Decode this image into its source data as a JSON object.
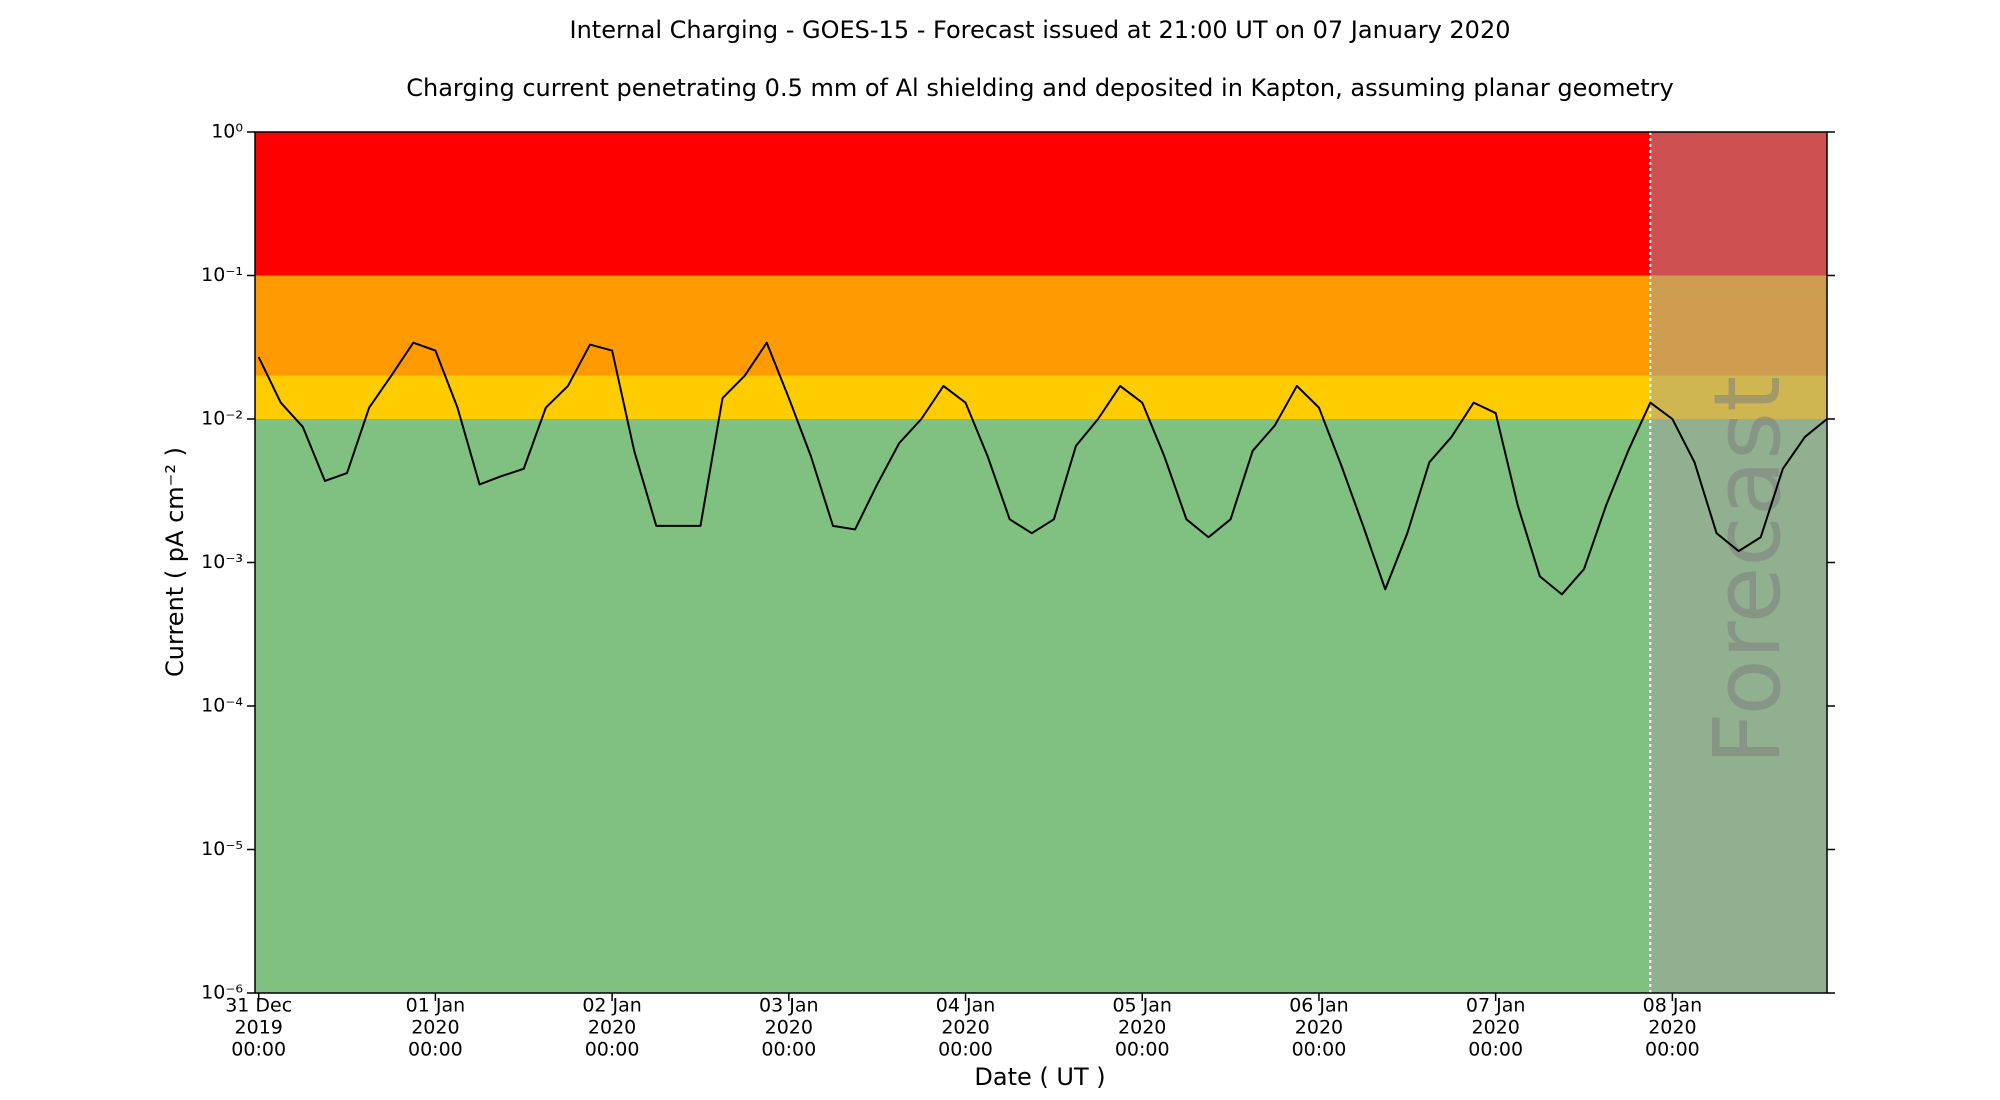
{
  "chart_data": {
    "type": "line",
    "title": "Internal Charging - GOES-15 - Forecast issued at 21:00 UT on 07 January 2020",
    "subtitle": "Charging current penetrating 0.5 mm of Al shielding and deposited in Kapton, assuming planar geometry",
    "x_label": "Date ( UT )",
    "y_label": "Current ( pA cm⁻² )",
    "log_y": true,
    "color": "#000000",
    "x": [
      "2019-12-31T00:00",
      "2019-12-31T03:00",
      "2019-12-31T06:00",
      "2019-12-31T09:00",
      "2019-12-31T12:00",
      "2019-12-31T15:00",
      "2019-12-31T18:00",
      "2019-12-31T21:00",
      "2020-01-01T00:00",
      "2020-01-01T03:00",
      "2020-01-01T06:00",
      "2020-01-01T09:00",
      "2020-01-01T12:00",
      "2020-01-01T15:00",
      "2020-01-01T18:00",
      "2020-01-01T21:00",
      "2020-01-02T00:00",
      "2020-01-02T03:00",
      "2020-01-02T06:00",
      "2020-01-02T09:00",
      "2020-01-02T12:00",
      "2020-01-02T15:00",
      "2020-01-02T18:00",
      "2020-01-02T21:00",
      "2020-01-03T00:00",
      "2020-01-03T03:00",
      "2020-01-03T06:00",
      "2020-01-03T09:00",
      "2020-01-03T12:00",
      "2020-01-03T15:00",
      "2020-01-03T18:00",
      "2020-01-03T21:00",
      "2020-01-04T00:00",
      "2020-01-04T03:00",
      "2020-01-04T06:00",
      "2020-01-04T09:00",
      "2020-01-04T12:00",
      "2020-01-04T15:00",
      "2020-01-04T18:00",
      "2020-01-04T21:00",
      "2020-01-05T00:00",
      "2020-01-05T03:00",
      "2020-01-05T06:00",
      "2020-01-05T09:00",
      "2020-01-05T12:00",
      "2020-01-05T15:00",
      "2020-01-05T18:00",
      "2020-01-05T21:00",
      "2020-01-06T00:00",
      "2020-01-06T03:00",
      "2020-01-06T06:00",
      "2020-01-06T09:00",
      "2020-01-06T12:00",
      "2020-01-06T15:00",
      "2020-01-06T18:00",
      "2020-01-06T21:00",
      "2020-01-07T00:00",
      "2020-01-07T03:00",
      "2020-01-07T06:00",
      "2020-01-07T09:00",
      "2020-01-07T12:00",
      "2020-01-07T15:00",
      "2020-01-07T18:00",
      "2020-01-07T21:00",
      "2020-01-08T00:00",
      "2020-01-08T03:00",
      "2020-01-08T06:00",
      "2020-01-08T09:00",
      "2020-01-08T12:00",
      "2020-01-08T15:00",
      "2020-01-08T18:00",
      "2020-01-08T21:00"
    ],
    "values": [
      0.027,
      0.013,
      0.0088,
      0.0037,
      0.0042,
      0.012,
      0.02,
      0.034,
      0.03,
      0.012,
      0.0035,
      0.004,
      0.0045,
      0.012,
      0.017,
      0.033,
      0.03,
      0.006,
      0.0018,
      0.0018,
      0.0018,
      0.014,
      0.02,
      0.034,
      0.014,
      0.0055,
      0.0018,
      0.0017,
      0.0035,
      0.0068,
      0.01,
      0.017,
      0.013,
      0.0055,
      0.002,
      0.0016,
      0.002,
      0.0065,
      0.01,
      0.017,
      0.013,
      0.0055,
      0.002,
      0.0015,
      0.002,
      0.006,
      0.009,
      0.017,
      0.012,
      0.0048,
      0.0018,
      0.00065,
      0.0016,
      0.005,
      0.0075,
      0.013,
      0.011,
      0.0025,
      0.0008,
      0.0006,
      0.0009,
      0.0025,
      0.006,
      0.013,
      0.01,
      0.005,
      0.0016,
      0.0012,
      0.0015,
      0.0045,
      0.0075,
      0.01
    ],
    "xlim": [
      "2019-12-30T23:30",
      "2020-01-08T21:00"
    ],
    "xticks": [
      {
        "value": "2019-12-31T00:00",
        "label": [
          "31 Dec",
          "2019",
          "00:00"
        ]
      },
      {
        "value": "2020-01-01T00:00",
        "label": [
          "01 Jan",
          "2020",
          "00:00"
        ]
      },
      {
        "value": "2020-01-02T00:00",
        "label": [
          "02 Jan",
          "2020",
          "00:00"
        ]
      },
      {
        "value": "2020-01-03T00:00",
        "label": [
          "03 Jan",
          "2020",
          "00:00"
        ]
      },
      {
        "value": "2020-01-04T00:00",
        "label": [
          "04 Jan",
          "2020",
          "00:00"
        ]
      },
      {
        "value": "2020-01-05T00:00",
        "label": [
          "05 Jan",
          "2020",
          "00:00"
        ]
      },
      {
        "value": "2020-01-06T00:00",
        "label": [
          "06 Jan",
          "2020",
          "00:00"
        ]
      },
      {
        "value": "2020-01-07T00:00",
        "label": [
          "07 Jan",
          "2020",
          "00:00"
        ]
      },
      {
        "value": "2020-01-08T00:00",
        "label": [
          "08 Jan",
          "2020",
          "00:00"
        ]
      }
    ],
    "ylim": [
      1e-06,
      1
    ],
    "yticks": [
      {
        "value": 1e-06,
        "label": "10⁻⁶"
      },
      {
        "value": 1e-05,
        "label": "10⁻⁵"
      },
      {
        "value": 0.0001,
        "label": "10⁻⁴"
      },
      {
        "value": 0.001,
        "label": "10⁻³"
      },
      {
        "value": 0.01,
        "label": "10⁻²"
      },
      {
        "value": 0.1,
        "label": "10⁻¹"
      },
      {
        "value": 1,
        "label": "10⁰"
      }
    ],
    "bands": [
      {
        "from": 1e-06,
        "to": 0.01,
        "color": "#80c080"
      },
      {
        "from": 0.01,
        "to": 0.02,
        "color": "#ffcc00"
      },
      {
        "from": 0.02,
        "to": 0.1,
        "color": "#ff9a00"
      },
      {
        "from": 0.1,
        "to": 1,
        "color": "#ff0000"
      }
    ],
    "forecast": {
      "start": "2020-01-07T21:00",
      "label": "Forecast",
      "color": "#a0a0a0"
    }
  }
}
